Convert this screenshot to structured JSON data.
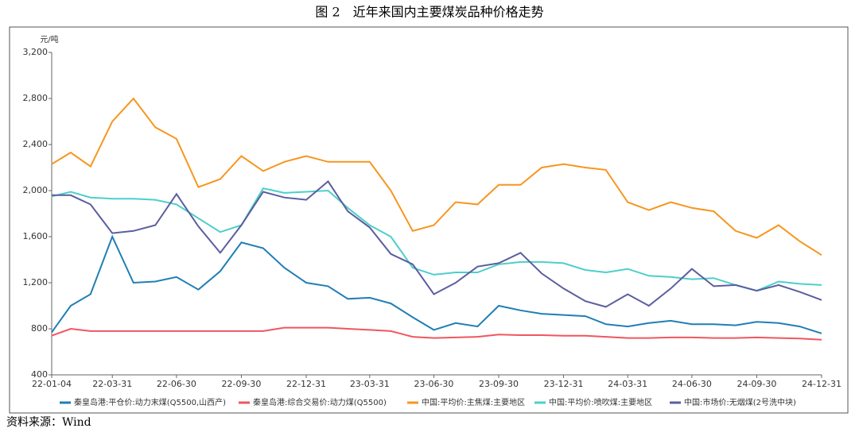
{
  "header": {
    "title": "图 2　近年来国内主要煤炭品种价格走势"
  },
  "chart_data": {
    "type": "line",
    "y_label": "元/吨",
    "x": [
      "22-01-04",
      "22-01-31",
      "22-02-28",
      "22-03-31",
      "22-04-30",
      "22-05-31",
      "22-06-30",
      "22-07-31",
      "22-08-31",
      "22-09-30",
      "22-10-31",
      "22-11-30",
      "22-12-31",
      "23-01-31",
      "23-02-28",
      "23-03-31",
      "23-04-30",
      "23-05-31",
      "23-06-30",
      "23-07-31",
      "23-08-31",
      "23-09-30",
      "23-10-31",
      "23-11-30",
      "23-12-31",
      "24-01-31",
      "24-02-29",
      "24-03-31",
      "24-04-30",
      "24-05-31",
      "24-06-30",
      "24-07-31",
      "24-08-31",
      "24-09-30",
      "24-10-31",
      "24-11-30",
      "24-12-31"
    ],
    "xlim": [
      "22-01-04",
      "24-12-31"
    ],
    "xticks": [
      "22-01-04",
      "22-03-31",
      "22-06-30",
      "22-09-30",
      "22-12-31",
      "23-03-31",
      "23-06-30",
      "23-09-30",
      "23-12-31",
      "24-03-31",
      "24-06-30",
      "24-09-30",
      "24-12-31"
    ],
    "ylim": [
      400,
      3200
    ],
    "yticks": [
      400,
      800,
      {
        "value": 1200,
        "label": "1,200"
      },
      {
        "value": 1600,
        "label": "1,600"
      },
      {
        "value": 2000,
        "label": "2,000"
      },
      {
        "value": 2400,
        "label": "2,400"
      },
      {
        "value": 2800,
        "label": "2,800"
      },
      {
        "value": 3200,
        "label": "3,200"
      }
    ],
    "grid": false,
    "legend": "bottom",
    "series": [
      {
        "name": "秦皇岛港:平仓价:动力末煤(Q5500,山西产)",
        "color": "#1f7fb4",
        "values": [
          770,
          1000,
          1100,
          1600,
          1200,
          1210,
          1250,
          1140,
          1300,
          1550,
          1500,
          1330,
          1200,
          1170,
          1060,
          1070,
          1020,
          900,
          790,
          850,
          820,
          1000,
          960,
          930,
          920,
          910,
          840,
          820,
          850,
          870,
          840,
          840,
          830,
          860,
          850,
          820,
          760
        ]
      },
      {
        "name": "秦皇岛港:综合交易价:动力煤(Q5500)",
        "color": "#f0565f",
        "values": [
          740,
          800,
          780,
          780,
          780,
          780,
          780,
          780,
          780,
          780,
          780,
          810,
          810,
          810,
          800,
          790,
          780,
          730,
          720,
          725,
          730,
          750,
          745,
          745,
          740,
          740,
          730,
          720,
          720,
          725,
          725,
          720,
          720,
          725,
          720,
          715,
          705
        ]
      },
      {
        "name": "中国:平均价:主焦煤:主要地区",
        "color": "#f7961e",
        "values": [
          2230,
          2330,
          2210,
          2600,
          2800,
          2550,
          2450,
          2030,
          2100,
          2300,
          2170,
          2250,
          2300,
          2250,
          2250,
          2250,
          2000,
          1650,
          1700,
          1900,
          1880,
          2050,
          2050,
          2200,
          2230,
          2200,
          2180,
          1900,
          1830,
          1900,
          1850,
          1820,
          1650,
          1590,
          1700,
          1560,
          1440
        ]
      },
      {
        "name": "中国:平均价:喷吹煤:主要地区",
        "color": "#4ccfcb",
        "values": [
          1950,
          1990,
          1940,
          1930,
          1930,
          1920,
          1880,
          1760,
          1640,
          1700,
          2020,
          1980,
          1990,
          2000,
          1850,
          1700,
          1600,
          1330,
          1270,
          1290,
          1290,
          1360,
          1380,
          1380,
          1370,
          1310,
          1290,
          1320,
          1260,
          1250,
          1230,
          1240,
          1180,
          1130,
          1210,
          1190,
          1180
        ]
      },
      {
        "name": "中国:市场价:无烟煤(2号洗中块)",
        "color": "#5b5e9e",
        "values": [
          1960,
          1960,
          1880,
          1630,
          1650,
          1700,
          1970,
          1690,
          1460,
          1700,
          1990,
          1940,
          1920,
          2080,
          1820,
          1680,
          1450,
          1360,
          1100,
          1200,
          1340,
          1370,
          1460,
          1280,
          1150,
          1040,
          990,
          1100,
          1000,
          1150,
          1320,
          1170,
          1180,
          1130,
          1180,
          1120,
          1050
        ]
      }
    ]
  },
  "footer": {
    "source": "资料来源：Wind"
  }
}
